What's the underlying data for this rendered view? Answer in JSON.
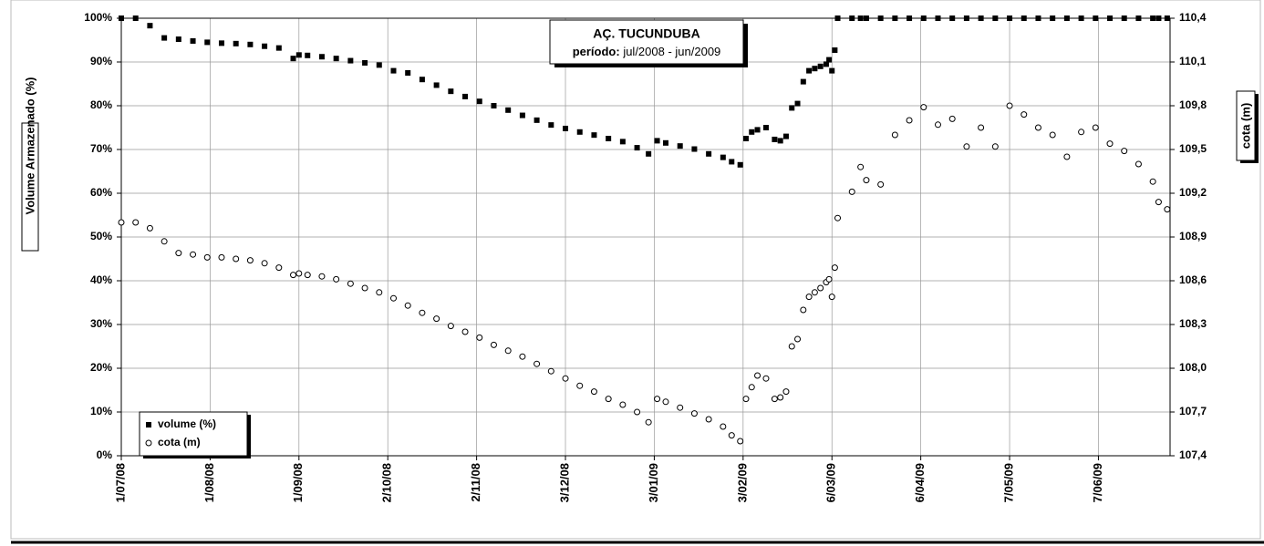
{
  "chart_data": {
    "type": "scatter",
    "title": "AÇ. TUCUNDUBA",
    "subtitle_label": "período:",
    "subtitle": "jul/2008 - jun/2009",
    "ylabel": "Volume Armazenado (%)",
    "y2label": "cota (m)",
    "legend": "lower left",
    "grid": true,
    "xlim": [
      "2008-07-01",
      "2009-07-02"
    ],
    "xticks": [
      {
        "value": "2008-07-01",
        "label": "1/07/08"
      },
      {
        "value": "2008-08-01",
        "label": "1/08/08"
      },
      {
        "value": "2008-09-01",
        "label": "1/09/08"
      },
      {
        "value": "2008-10-02",
        "label": "2/10/08"
      },
      {
        "value": "2008-11-02",
        "label": "2/11/08"
      },
      {
        "value": "2008-12-03",
        "label": "3/12/08"
      },
      {
        "value": "2009-01-03",
        "label": "3/01/09"
      },
      {
        "value": "2009-02-03",
        "label": "3/02/09"
      },
      {
        "value": "2009-03-06",
        "label": "6/03/09"
      },
      {
        "value": "2009-04-06",
        "label": "6/04/09"
      },
      {
        "value": "2009-05-07",
        "label": "7/05/09"
      },
      {
        "value": "2009-06-07",
        "label": "7/06/09"
      }
    ],
    "ylim": [
      0,
      100
    ],
    "yticks": [
      {
        "value": 0,
        "label": "0%"
      },
      {
        "value": 10,
        "label": "10%"
      },
      {
        "value": 20,
        "label": "20%"
      },
      {
        "value": 30,
        "label": "30%"
      },
      {
        "value": 40,
        "label": "40%"
      },
      {
        "value": 50,
        "label": "50%"
      },
      {
        "value": 60,
        "label": "60%"
      },
      {
        "value": 70,
        "label": "70%"
      },
      {
        "value": 80,
        "label": "80%"
      },
      {
        "value": 90,
        "label": "90%"
      },
      {
        "value": 100,
        "label": "100%"
      }
    ],
    "y2lim": [
      107.4,
      110.4
    ],
    "y2ticks": [
      {
        "value": 107.4,
        "label": "107,4"
      },
      {
        "value": 107.7,
        "label": "107,7"
      },
      {
        "value": 108.0,
        "label": "108,0"
      },
      {
        "value": 108.3,
        "label": "108,3"
      },
      {
        "value": 108.6,
        "label": "108,6"
      },
      {
        "value": 108.9,
        "label": "108,9"
      },
      {
        "value": 109.2,
        "label": "109,2"
      },
      {
        "value": 109.5,
        "label": "109,5"
      },
      {
        "value": 109.8,
        "label": "109,8"
      },
      {
        "value": 110.1,
        "label": "110,1"
      },
      {
        "value": 110.4,
        "label": "110,4"
      }
    ],
    "x": [
      "2008-07-01",
      "2008-07-06",
      "2008-07-11",
      "2008-07-16",
      "2008-07-21",
      "2008-07-26",
      "2008-07-31",
      "2008-08-05",
      "2008-08-10",
      "2008-08-15",
      "2008-08-20",
      "2008-08-25",
      "2008-08-30",
      "2008-09-01",
      "2008-09-04",
      "2008-09-09",
      "2008-09-14",
      "2008-09-19",
      "2008-09-24",
      "2008-09-29",
      "2008-10-04",
      "2008-10-09",
      "2008-10-14",
      "2008-10-19",
      "2008-10-24",
      "2008-10-29",
      "2008-11-03",
      "2008-11-08",
      "2008-11-13",
      "2008-11-18",
      "2008-11-23",
      "2008-11-28",
      "2008-12-03",
      "2008-12-08",
      "2008-12-13",
      "2008-12-18",
      "2008-12-23",
      "2008-12-28",
      "2009-01-01",
      "2009-01-04",
      "2009-01-07",
      "2009-01-12",
      "2009-01-17",
      "2009-01-22",
      "2009-01-27",
      "2009-01-30",
      "2009-02-02",
      "2009-02-04",
      "2009-02-06",
      "2009-02-08",
      "2009-02-11",
      "2009-02-14",
      "2009-02-16",
      "2009-02-18",
      "2009-02-20",
      "2009-02-22",
      "2009-02-24",
      "2009-02-26",
      "2009-02-28",
      "2009-03-02",
      "2009-03-04",
      "2009-03-05",
      "2009-03-06",
      "2009-03-07",
      "2009-03-08",
      "2009-03-13",
      "2009-03-16",
      "2009-03-18",
      "2009-03-23",
      "2009-03-28",
      "2009-04-02",
      "2009-04-07",
      "2009-04-12",
      "2009-04-17",
      "2009-04-22",
      "2009-04-27",
      "2009-05-02",
      "2009-05-07",
      "2009-05-12",
      "2009-05-17",
      "2009-05-22",
      "2009-05-27",
      "2009-06-01",
      "2009-06-06",
      "2009-06-11",
      "2009-06-16",
      "2009-06-21",
      "2009-06-26",
      "2009-06-28",
      "2009-07-01"
    ],
    "series": [
      {
        "name": "volume (%)",
        "color": "#000000",
        "marker": "square",
        "values": [
          100,
          100,
          98.3,
          95.5,
          95.2,
          94.8,
          94.5,
          94.3,
          94.2,
          94,
          93.6,
          93.2,
          90.8,
          91.6,
          91.5,
          91.2,
          90.8,
          90.3,
          89.8,
          89.3,
          88.0,
          87.5,
          86,
          84.7,
          83.3,
          82.1,
          81,
          80,
          79,
          77.8,
          76.7,
          75.6,
          74.8,
          74,
          73.3,
          72.5,
          71.8,
          70.4,
          69.0,
          72,
          71.5,
          70.8,
          70.1,
          69.0,
          68.2,
          67.2,
          66.5,
          72.5,
          74,
          74.5,
          75,
          72.3,
          72,
          73,
          79.5,
          80.5,
          85.5,
          88,
          88.5,
          89,
          89.5,
          90.5,
          88,
          92.7,
          100,
          100,
          100,
          100,
          100,
          100,
          100,
          100,
          100,
          100,
          100,
          100,
          100,
          100,
          100,
          100,
          100,
          100,
          100,
          100,
          100,
          100,
          100,
          100,
          100,
          100
        ]
      },
      {
        "name": "cota (m)",
        "color": "#000000",
        "marker": "circle",
        "axis": "y2",
        "values": [
          109.0,
          109.0,
          108.96,
          108.87,
          108.79,
          108.78,
          108.76,
          108.76,
          108.75,
          108.74,
          108.72,
          108.69,
          108.64,
          108.65,
          108.64,
          108.63,
          108.61,
          108.58,
          108.55,
          108.52,
          108.48,
          108.43,
          108.38,
          108.34,
          108.29,
          108.25,
          108.21,
          108.16,
          108.12,
          108.08,
          108.03,
          107.98,
          107.93,
          107.88,
          107.84,
          107.79,
          107.75,
          107.7,
          107.63,
          107.79,
          107.77,
          107.73,
          107.69,
          107.65,
          107.6,
          107.54,
          107.5,
          107.79,
          107.87,
          107.95,
          107.93,
          107.79,
          107.8,
          107.84,
          108.15,
          108.2,
          108.4,
          108.49,
          108.52,
          108.55,
          108.59,
          108.61,
          108.49,
          108.69,
          109.03,
          109.21,
          109.38,
          109.29,
          109.26,
          109.6,
          109.7,
          109.79,
          109.67,
          109.71,
          109.52,
          109.65,
          109.52,
          109.8,
          109.74,
          109.65,
          109.6,
          109.45,
          109.62,
          109.65,
          109.54,
          109.49,
          109.4,
          109.28,
          109.14,
          109.09
        ]
      }
    ]
  }
}
